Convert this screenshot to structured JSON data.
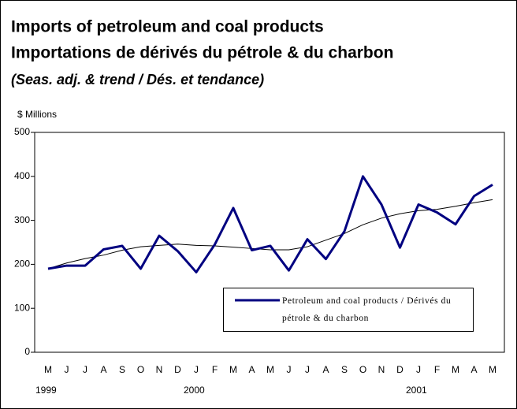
{
  "chart_data": {
    "type": "line",
    "title": "Imports of petroleum and coal products",
    "title_fr": "Importations de dérivés du pétrole & du charbon",
    "subtitle": "(Seas. adj. & trend / Dés. et tendance)",
    "y_label": "$ Millions",
    "categories": [
      "M",
      "J",
      "J",
      "A",
      "S",
      "O",
      "N",
      "D",
      "J",
      "F",
      "M",
      "A",
      "M",
      "J",
      "J",
      "A",
      "S",
      "O",
      "N",
      "D",
      "J",
      "F",
      "M",
      "A",
      "M"
    ],
    "category_groups": [
      "1999",
      null,
      null,
      null,
      null,
      null,
      null,
      null,
      "2000",
      null,
      null,
      null,
      null,
      null,
      null,
      null,
      null,
      null,
      null,
      null,
      "2001",
      null,
      null,
      null,
      null
    ],
    "series": [
      {
        "name": "Petroleum and coal products / Dérivés du pétrole & du charbon",
        "color": "#000080",
        "width": 3,
        "values": [
          190,
          197,
          197,
          234,
          242,
          190,
          265,
          230,
          182,
          245,
          328,
          232,
          242,
          186,
          257,
          212,
          275,
          400,
          336,
          238,
          336,
          318,
          291,
          355,
          381
        ]
      },
      {
        "color": "#000000",
        "width": 1,
        "values": [
          190,
          203,
          213,
          221,
          232,
          240,
          243,
          246,
          243,
          242,
          239,
          236,
          233,
          233,
          240,
          255,
          270,
          290,
          305,
          315,
          322,
          325,
          332,
          340,
          347
        ]
      }
    ],
    "ylim": [
      0,
      500
    ],
    "yticks": [
      0,
      100,
      200,
      300,
      400,
      500
    ],
    "grid": false,
    "legend": "lower right"
  }
}
